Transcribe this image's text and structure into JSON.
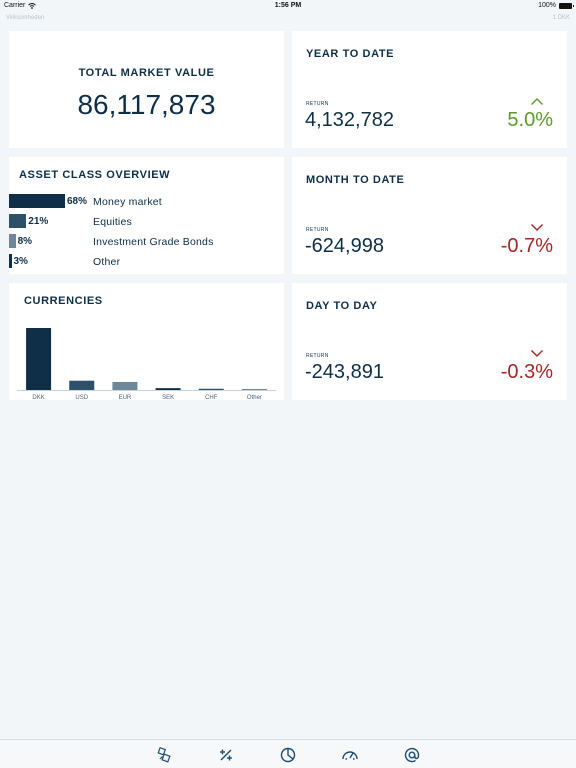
{
  "status_bar": {
    "carrier": "Carrier",
    "time": "1:56 PM",
    "battery": "100%"
  },
  "sub_header": {
    "left": "Virksomheden",
    "right": "1 DKK"
  },
  "total_market_value": {
    "title": "TOTAL MARKET VALUE",
    "value": "86,117,873"
  },
  "returns": [
    {
      "title": "YEAR TO DATE",
      "label": "RETURN",
      "value": "4,132,782",
      "pct": "5.0%",
      "direction": "up"
    },
    {
      "title": "MONTH TO DATE",
      "label": "RETURN",
      "value": "-624,998",
      "pct": "-0.7%",
      "direction": "down"
    },
    {
      "title": "DAY TO DAY",
      "label": "RETURN",
      "value": "-243,891",
      "pct": "-0.3%",
      "direction": "down"
    }
  ],
  "asset_class_overview": {
    "title": "ASSET CLASS OVERVIEW",
    "items": [
      {
        "pct_label": "68%",
        "share": 68,
        "label": "Money market",
        "color": "#0e2f47"
      },
      {
        "pct_label": "21%",
        "share": 21,
        "label": "Equities",
        "color": "#2d506b"
      },
      {
        "pct_label": "8%",
        "share": 8,
        "label": "Investment Grade Bonds",
        "color": "#6f8899"
      },
      {
        "pct_label": "3%",
        "share": 3,
        "label": "Other",
        "color": "#0e2f47"
      }
    ]
  },
  "currencies": {
    "title": "CURRENCIES",
    "chart_data": {
      "type": "bar",
      "categories": [
        "DKK",
        "USD",
        "EUR",
        "SEK",
        "CHF",
        "Other"
      ],
      "values": [
        100,
        15,
        13,
        3,
        2,
        1
      ],
      "colors": [
        "#0e2f47",
        "#2d506b",
        "#6f8899",
        "#0e2f47",
        "#2d506b",
        "#6f8899"
      ],
      "title": "",
      "xlabel": "",
      "ylabel": "",
      "ylim": [
        0,
        100
      ]
    }
  },
  "tab_bar": {
    "items": [
      {
        "icon": "assets-icon"
      },
      {
        "icon": "percent-icon"
      },
      {
        "icon": "pie-chart-icon"
      },
      {
        "icon": "gauge-icon"
      },
      {
        "icon": "at-sign-icon"
      }
    ],
    "color": "#1d4d73"
  }
}
